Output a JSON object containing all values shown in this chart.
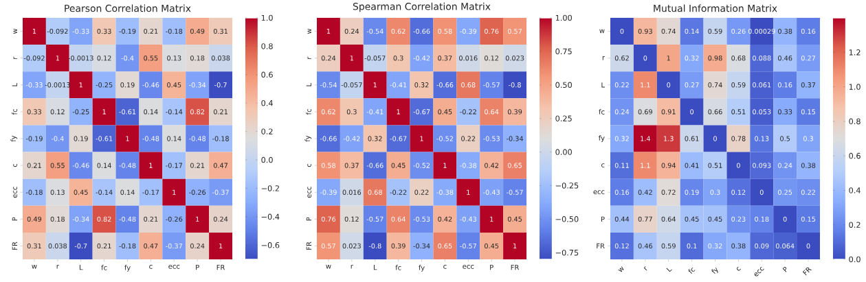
{
  "chart_data": [
    {
      "type": "heatmap",
      "title": "Pearson Correlation Matrix",
      "categories": [
        "w",
        "r",
        "L",
        "fc",
        "fy",
        "c",
        "ecc",
        "P",
        "FR"
      ],
      "y_categories": [
        "w",
        "r",
        "L",
        "fc",
        "fy",
        "c",
        "ecc",
        "P",
        "FR"
      ],
      "cells": [
        [
          1,
          -0.092,
          -0.33,
          0.33,
          -0.19,
          0.21,
          -0.18,
          0.49,
          0.31
        ],
        [
          -0.092,
          1,
          -0.0013,
          0.12,
          -0.4,
          0.55,
          0.13,
          0.18,
          0.038
        ],
        [
          -0.33,
          -0.0013,
          1,
          -0.25,
          0.19,
          -0.46,
          0.45,
          -0.34,
          -0.7
        ],
        [
          0.33,
          0.12,
          -0.25,
          1,
          -0.61,
          0.14,
          -0.14,
          0.82,
          0.21
        ],
        [
          -0.19,
          -0.4,
          0.19,
          -0.61,
          1,
          -0.48,
          0.14,
          -0.48,
          -0.18
        ],
        [
          0.21,
          0.55,
          -0.46,
          0.14,
          -0.48,
          1,
          -0.17,
          0.21,
          0.47
        ],
        [
          -0.18,
          0.13,
          0.45,
          -0.14,
          0.14,
          -0.17,
          1,
          -0.26,
          -0.37
        ],
        [
          0.49,
          0.18,
          -0.34,
          0.82,
          -0.48,
          0.21,
          -0.26,
          1,
          0.24
        ],
        [
          0.31,
          0.038,
          -0.7,
          0.21,
          -0.18,
          0.47,
          -0.37,
          0.24,
          1
        ]
      ],
      "data_labels": true,
      "clim": [
        -0.7,
        1.0
      ],
      "cticks": [
        {
          "value": -0.6,
          "label": "−0.6"
        },
        {
          "value": -0.4,
          "label": "−0.4"
        },
        {
          "value": -0.2,
          "label": "−0.2"
        },
        {
          "value": 0,
          "label": "0.0"
        },
        {
          "value": 0.2,
          "label": "0.2"
        },
        {
          "value": 0.4,
          "label": "0.4"
        },
        {
          "value": 0.6,
          "label": "0.6"
        },
        {
          "value": 0.8,
          "label": "0.8"
        },
        {
          "value": 1,
          "label": "1.0"
        }
      ]
    },
    {
      "type": "heatmap",
      "title": "Spearman Correlation Matrix",
      "categories": [
        "w",
        "r",
        "L",
        "fc",
        "fy",
        "c",
        "ecc",
        "P",
        "FR"
      ],
      "y_categories": [
        "w",
        "r",
        "L",
        "fc",
        "fy",
        "c",
        "ecc",
        "P",
        "FR"
      ],
      "cells": [
        [
          1,
          0.24,
          -0.54,
          0.62,
          -0.66,
          0.58,
          -0.39,
          0.76,
          0.57
        ],
        [
          0.24,
          1,
          -0.057,
          0.3,
          -0.42,
          0.37,
          0.016,
          0.12,
          0.023
        ],
        [
          -0.54,
          -0.057,
          1,
          -0.41,
          0.32,
          -0.66,
          0.68,
          -0.57,
          -0.8
        ],
        [
          0.62,
          0.3,
          -0.41,
          1,
          -0.67,
          0.45,
          -0.22,
          0.64,
          0.39
        ],
        [
          -0.66,
          -0.42,
          0.32,
          -0.67,
          1,
          -0.52,
          0.22,
          -0.53,
          -0.34
        ],
        [
          0.58,
          0.37,
          -0.66,
          0.45,
          -0.52,
          1,
          -0.38,
          0.42,
          0.65
        ],
        [
          -0.39,
          0.016,
          0.68,
          -0.22,
          0.22,
          -0.38,
          1,
          -0.43,
          -0.57
        ],
        [
          0.76,
          0.12,
          -0.57,
          0.64,
          -0.53,
          0.42,
          -0.43,
          1,
          0.45
        ],
        [
          0.57,
          0.023,
          -0.8,
          0.39,
          -0.34,
          0.65,
          -0.57,
          0.45,
          1
        ]
      ],
      "data_labels": true,
      "clim": [
        -0.8,
        1.0
      ],
      "cticks": [
        {
          "value": -0.75,
          "label": "−0.75"
        },
        {
          "value": -0.5,
          "label": "−0.50"
        },
        {
          "value": -0.25,
          "label": "−0.25"
        },
        {
          "value": 0,
          "label": "0.00"
        },
        {
          "value": 0.25,
          "label": "0.25"
        },
        {
          "value": 0.5,
          "label": "0.50"
        },
        {
          "value": 0.75,
          "label": "0.75"
        },
        {
          "value": 1,
          "label": "1.00"
        }
      ]
    },
    {
      "type": "heatmap",
      "title": "Mutual Information Matrix",
      "categories": [
        "w",
        "r",
        "L",
        "fc",
        "fy",
        "c",
        "ecc",
        "P",
        "FR"
      ],
      "y_categories": [
        "w",
        "r",
        "L",
        "fc",
        "fy",
        "c",
        "ecc",
        "P",
        "FR"
      ],
      "cells": [
        [
          0,
          0.93,
          0.74,
          0.14,
          0.59,
          0.26,
          0.00029,
          0.38,
          0.16
        ],
        [
          0.62,
          0,
          1,
          0.32,
          0.98,
          0.68,
          0.088,
          0.46,
          0.27
        ],
        [
          0.22,
          1.1,
          0,
          0.27,
          0.74,
          0.59,
          0.061,
          0.16,
          0.37
        ],
        [
          0.24,
          0.69,
          0.91,
          0,
          0.66,
          0.51,
          0.053,
          0.33,
          0.15
        ],
        [
          0.32,
          1.4,
          1.3,
          0.61,
          0,
          0.78,
          0.13,
          0.5,
          0.3
        ],
        [
          0.11,
          1.1,
          0.94,
          0.41,
          0.51,
          0,
          0.093,
          0.24,
          0.38
        ],
        [
          0.16,
          0.42,
          0.72,
          0.19,
          0.3,
          0.12,
          0,
          0.25,
          0.22
        ],
        [
          0.44,
          0.77,
          0.64,
          0.45,
          0.45,
          0.23,
          0.18,
          0,
          0.15
        ],
        [
          0.12,
          0.46,
          0.59,
          0.1,
          0.32,
          0.38,
          0.09,
          0.064,
          0
        ]
      ],
      "data_labels": true,
      "clim": [
        0,
        1.4
      ],
      "cticks": [
        {
          "value": 0,
          "label": "0.0"
        },
        {
          "value": 0.2,
          "label": "0.2"
        },
        {
          "value": 0.4,
          "label": "0.4"
        },
        {
          "value": 0.6,
          "label": "0.6"
        },
        {
          "value": 0.8,
          "label": "0.8"
        },
        {
          "value": 1,
          "label": "1.0"
        },
        {
          "value": 1.2,
          "label": "1.2"
        }
      ]
    }
  ]
}
